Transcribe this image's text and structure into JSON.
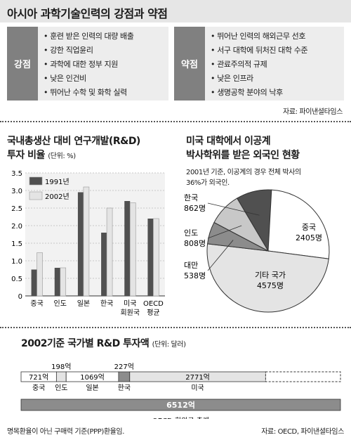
{
  "header": {
    "title": "아시아 과학기술인력의 강점과 약점",
    "source": "자료: 파이낸셜타임스"
  },
  "strengths": {
    "label": "강점",
    "items": [
      "훈련 받은 인력의 대량 배출",
      "강한 직업윤리",
      "과학에 대한 정부 지원",
      "낮은 인건비",
      "뛰어난 수학 및 화학 실력"
    ]
  },
  "weaknesses": {
    "label": "약점",
    "items": [
      "뛰어난 인력의 해외근무 선호",
      "서구 대학에 뒤처진 대학 수준",
      "관료주의적 규제",
      "낮은 인프라",
      "생명공학 분야의 낙후"
    ]
  },
  "colors": {
    "dark": "#505050",
    "light": "#e4e4e4",
    "mid": "#8c8c8c",
    "band": "#e6e6e6",
    "label_bg": "#808080"
  },
  "chart_data": [
    {
      "type": "bar",
      "title": "국내총생산 대비 연구개발(R&D)",
      "title2": "투자 비율",
      "unit": "(단위: %)",
      "categories": [
        "중국",
        "인도",
        "일본",
        "한국",
        "미국",
        "OECD"
      ],
      "categories2": [
        "",
        "",
        "",
        "",
        "회원국",
        "평균"
      ],
      "series": [
        {
          "name": "1991년",
          "values": [
            0.75,
            0.8,
            2.95,
            1.8,
            2.7,
            2.2
          ]
        },
        {
          "name": "2002년",
          "values": [
            1.23,
            0.8,
            3.1,
            2.5,
            2.65,
            2.2
          ]
        }
      ],
      "yticks": [
        "0",
        "0.5",
        "1.0",
        "1.5",
        "2.0",
        "2.5",
        "3.0",
        "3.5"
      ],
      "ylim": [
        0,
        3.5
      ]
    },
    {
      "type": "pie",
      "title": "미국 대학에서 이공계",
      "title2": "박사학위를 받은 외국인 현황",
      "note1": "2001년 기준, 이공계의 경우 전체 박사의",
      "note2": "36%가 외국인.",
      "slices": [
        {
          "name": "한국",
          "value": 862,
          "label": "862명",
          "color": "#505050"
        },
        {
          "name": "중국",
          "value": 2405,
          "label": "2405명",
          "color": "#ffffff"
        },
        {
          "name": "기타 국가",
          "value": 4575,
          "label": "4575명",
          "color": "#e4e4e4"
        },
        {
          "name": "대만",
          "value": 538,
          "label": "538명",
          "color": "#8c8c8c"
        },
        {
          "name": "인도",
          "value": 808,
          "label": "808명",
          "color": "#c8c8c8"
        }
      ]
    },
    {
      "type": "bar",
      "title": "2002기준 국가별 R&D 투자액",
      "unit": "(단위: 달러)",
      "segments": [
        {
          "country": "중국",
          "value": 721,
          "label": "721억"
        },
        {
          "country": "인도",
          "value": 198,
          "label": "198억"
        },
        {
          "country": "일본",
          "value": 1069,
          "label": "1069억"
        },
        {
          "country": "한국",
          "value": 227,
          "label": "227억"
        },
        {
          "country": "미국",
          "value": 2771,
          "label": "2771억"
        }
      ],
      "total": {
        "value": 6512,
        "label": "6512억",
        "name": "OECD 회원국 총계"
      },
      "footnote": "명목환율이 아닌 구매력 기준(PPP)환율임.",
      "source": "자료: OECD, 파이낸셜타임스"
    }
  ]
}
